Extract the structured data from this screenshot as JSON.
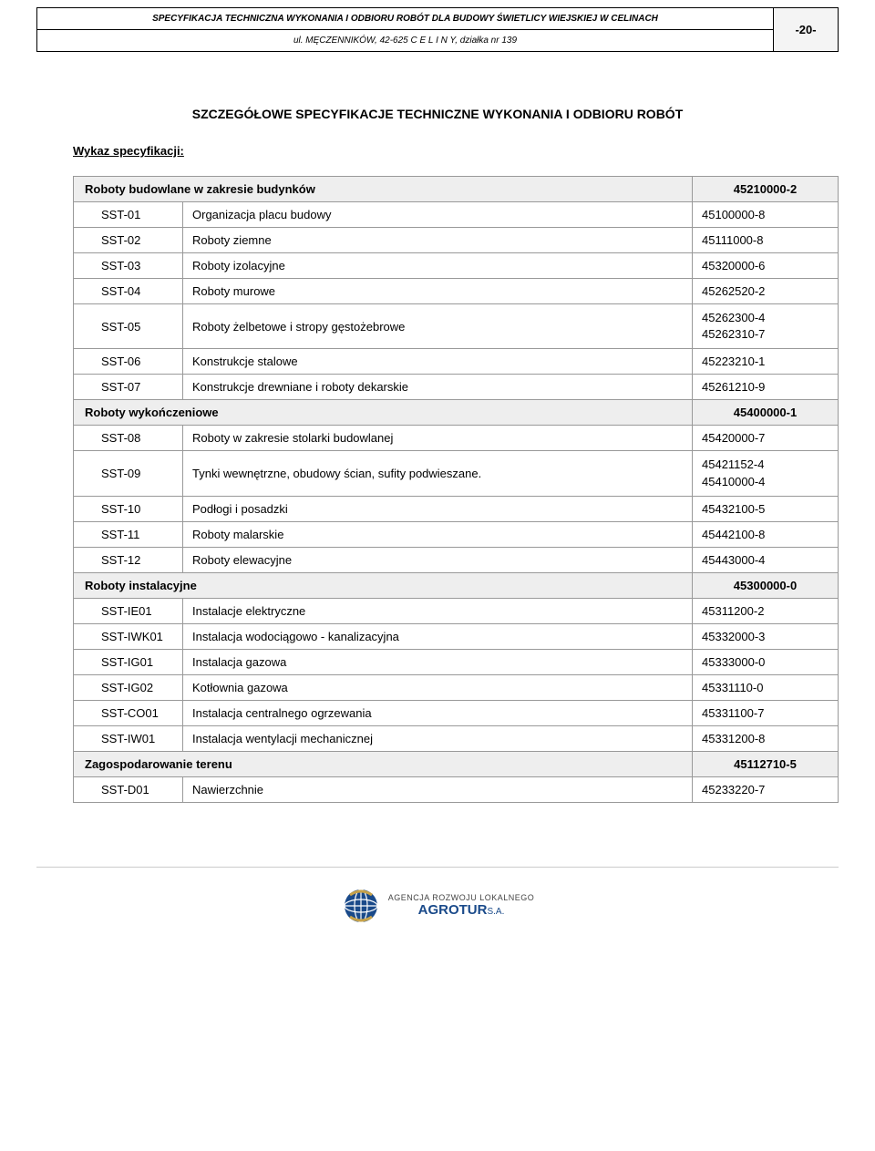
{
  "header": {
    "title": "SPECYFIKACJA TECHNICZNA  WYKONANIA I ODBIORU  ROBÓT  DLA BUDOWY ŚWIETLICY WIEJSKIEJ W CELINACH",
    "subtitle": "ul. MĘCZENNIKÓW, 42-625 C E L I N Y, działka nr  139",
    "page": "-20-"
  },
  "section_title": "SZCZEGÓŁOWE SPECYFIKACJE TECHNICZNE WYKONANIA I ODBIORU ROBÓT",
  "list_label": "Wykaz specyfikacji:",
  "table": {
    "groups": [
      {
        "label": "Roboty budowlane w zakresie budynków",
        "num": "45210000-2",
        "rows": [
          {
            "code": "SST-01",
            "desc": "Organizacja placu budowy",
            "num": "45100000-8"
          },
          {
            "code": "SST-02",
            "desc": "Roboty ziemne",
            "num": "45111000-8"
          },
          {
            "code": "SST-03",
            "desc": "Roboty izolacyjne",
            "num": "45320000-6"
          },
          {
            "code": "SST-04",
            "desc": "Roboty murowe",
            "num": "45262520-2"
          },
          {
            "code": "SST-05",
            "desc": "Roboty żelbetowe i stropy gęstożebrowe",
            "num": "45262300-4\n45262310-7"
          },
          {
            "code": "SST-06",
            "desc": "Konstrukcje stalowe",
            "num": "45223210-1"
          },
          {
            "code": "SST-07",
            "desc": "Konstrukcje drewniane i roboty dekarskie",
            "num": "45261210-9"
          }
        ]
      },
      {
        "label": "Roboty wykończeniowe",
        "num": "45400000-1",
        "rows": [
          {
            "code": "SST-08",
            "desc": "Roboty w zakresie stolarki budowlanej",
            "num": "45420000-7"
          },
          {
            "code": "SST-09",
            "desc": "Tynki wewnętrzne, obudowy ścian, sufity podwieszane.",
            "num": "45421152-4\n45410000-4"
          },
          {
            "code": "SST-10",
            "desc": "Podłogi i posadzki",
            "num": "45432100-5"
          },
          {
            "code": "SST-11",
            "desc": "Roboty malarskie",
            "num": "45442100-8"
          },
          {
            "code": "SST-12",
            "desc": "Roboty elewacyjne",
            "num": "45443000-4"
          }
        ]
      },
      {
        "label": "Roboty instalacyjne",
        "num": "45300000-0",
        "rows": [
          {
            "code": "SST-IE01",
            "desc": "Instalacje elektryczne",
            "num": "45311200-2"
          },
          {
            "code": "SST-IWK01",
            "desc": "Instalacja wodociągowo - kanalizacyjna",
            "num": "45332000-3"
          },
          {
            "code": "SST-IG01",
            "desc": "Instalacja gazowa",
            "num": "45333000-0"
          },
          {
            "code": "SST-IG02",
            "desc": "Kotłownia gazowa",
            "num": "45331110-0"
          },
          {
            "code": "SST-CO01",
            "desc": "Instalacja centralnego ogrzewania",
            "num": "45331100-7"
          },
          {
            "code": "SST-IW01",
            "desc": "Instalacja wentylacji mechanicznej",
            "num": "45331200-8"
          }
        ]
      },
      {
        "label": "Zagospodarowanie terenu",
        "num": "45112710-5",
        "rows": [
          {
            "code": "SST-D01",
            "desc": "Nawierzchnie",
            "num": "45233220-7"
          }
        ]
      }
    ]
  },
  "footer": {
    "agency_line": "AGENCJA ROZWOJU LOKALNEGO",
    "brand": "AGROTUR",
    "sa": "S.A."
  },
  "colors": {
    "header_right_bg": "#f4f4f4",
    "group_bg": "#eeeeee",
    "border": "#999999",
    "text": "#000000",
    "footer_brand": "#1a4a8a"
  }
}
